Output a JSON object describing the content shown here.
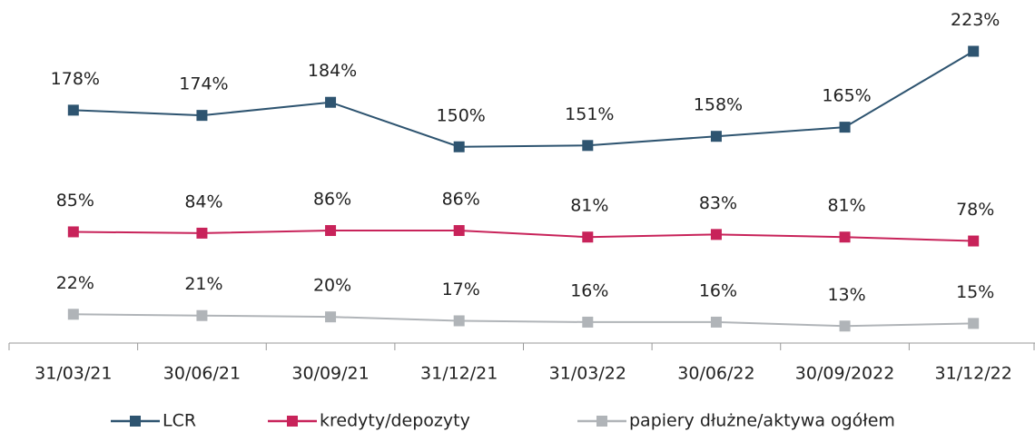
{
  "chart_data": {
    "type": "line",
    "categories": [
      "31/03/21",
      "30/06/21",
      "30/09/21",
      "31/12/21",
      "31/03/22",
      "30/06/22",
      "30/09/2022",
      "31/12/22"
    ],
    "series": [
      {
        "name": "LCR",
        "color": "#2e5470",
        "values": [
          178,
          174,
          184,
          150,
          151,
          158,
          165,
          223
        ],
        "value_labels": [
          "178%",
          "174%",
          "184%",
          "150%",
          "151%",
          "158%",
          "165%",
          "223%"
        ]
      },
      {
        "name": "kredyty/depozyty",
        "color": "#c8235a",
        "values": [
          85,
          84,
          86,
          86,
          81,
          83,
          81,
          78
        ],
        "value_labels": [
          "85%",
          "84%",
          "86%",
          "86%",
          "81%",
          "83%",
          "81%",
          "78%"
        ]
      },
      {
        "name": "papiery dłużne/aktywa ogółem",
        "color": "#b0b4b8",
        "values": [
          22,
          21,
          20,
          17,
          16,
          16,
          13,
          15
        ],
        "value_labels": [
          "22%",
          "21%",
          "20%",
          "17%",
          "16%",
          "16%",
          "13%",
          "15%"
        ]
      }
    ],
    "ylim": [
      0,
      240
    ],
    "legend": "bottom"
  }
}
